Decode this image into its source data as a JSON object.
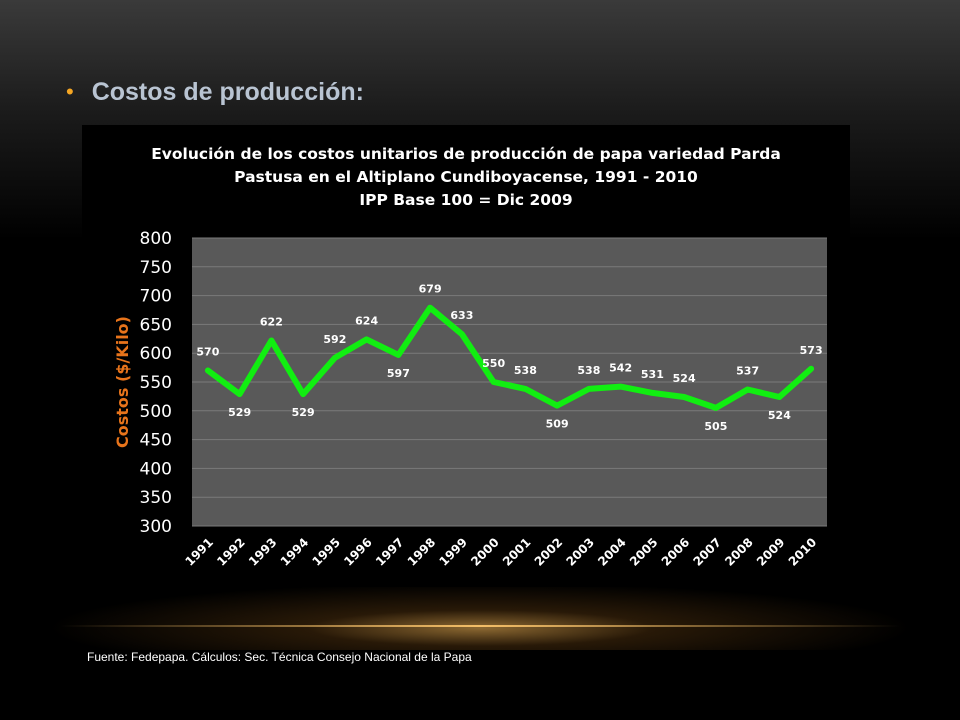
{
  "slide": {
    "bullet": "•",
    "title": "Costos de producción:",
    "source": "Fuente: Fedepapa.  Cálculos: Sec. Técnica Consejo Nacional de la Papa"
  },
  "chart_data": {
    "type": "line",
    "title_lines": [
      "Evolución de los costos unitarios de producción de papa variedad Parda",
      "Pastusa en el Altiplano Cundiboyacense, 1991 - 2010",
      "IPP Base 100 = Dic 2009"
    ],
    "ylabel": "Costos  ($/Kilo)",
    "xlabel": "",
    "ylim": [
      300,
      800
    ],
    "yticks": [
      300,
      350,
      400,
      450,
      500,
      550,
      600,
      650,
      700,
      750,
      800
    ],
    "categories": [
      "1991",
      "1992",
      "1993",
      "1994",
      "1995",
      "1996",
      "1997",
      "1998",
      "1999",
      "2000",
      "2001",
      "2002",
      "2003",
      "2004",
      "2005",
      "2006",
      "2007",
      "2008",
      "2009",
      "2010"
    ],
    "values": [
      570,
      529,
      622,
      529,
      592,
      624,
      597,
      679,
      633,
      550,
      538,
      509,
      538,
      542,
      531,
      524,
      505,
      537,
      524,
      573
    ],
    "grid": true,
    "legend": "none",
    "colors": {
      "line": "#11ee11",
      "plot_bg": "#595959",
      "grid": "#7a7a7a",
      "ylabel": "#e8741b",
      "text": "#ffffff"
    }
  }
}
